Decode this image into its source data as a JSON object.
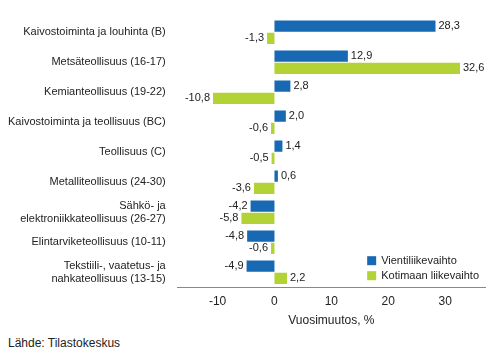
{
  "chart_data": {
    "type": "bar",
    "orientation": "horizontal",
    "categories": [
      "Kaivostoiminta ja louhinta (B)",
      "Metsäteollisuus (16-17)",
      "Kemianteollisuus (19-22)",
      "Kaivostoiminta ja teollisuus (BC)",
      "Teollisuus (C)",
      "Metalliteollisuus (24-30)",
      "Sähkö- ja\nelektroniikkateollisuus (26-27)",
      "Elintarviketeollisuus (10-11)",
      "Tekstiili-, vaatetus- ja\nnahkateollisuus (13-15)"
    ],
    "series": [
      {
        "name": "Vientiliikevaihto",
        "color": "#1769b3",
        "values": [
          28.3,
          12.9,
          2.8,
          2.0,
          1.4,
          0.6,
          -4.2,
          -4.8,
          -4.9
        ],
        "value_labels": [
          "28,3",
          "12,9",
          "2,8",
          "2,0",
          "1,4",
          "0,6",
          "-4,2",
          "-4,8",
          "-4,9"
        ]
      },
      {
        "name": "Kotimaan liikevaihto",
        "color": "#b3d235",
        "values": [
          -1.3,
          32.6,
          -10.8,
          -0.6,
          -0.5,
          -3.6,
          -5.8,
          -0.6,
          2.2
        ],
        "value_labels": [
          "-1,3",
          "32,6",
          "-10,8",
          "-0,6",
          "-0,5",
          "-3,6",
          "-5,8",
          "-0,6",
          "2,2"
        ]
      }
    ],
    "x_label": "Vuosimuutos, %",
    "xlim": [
      -17,
      37
    ],
    "xticks": [
      -10,
      0,
      10,
      20,
      30
    ],
    "grid": false,
    "legend": "lower right",
    "data_labels": true,
    "annotations": [
      "Lähde: Tilastokeskus"
    ]
  }
}
